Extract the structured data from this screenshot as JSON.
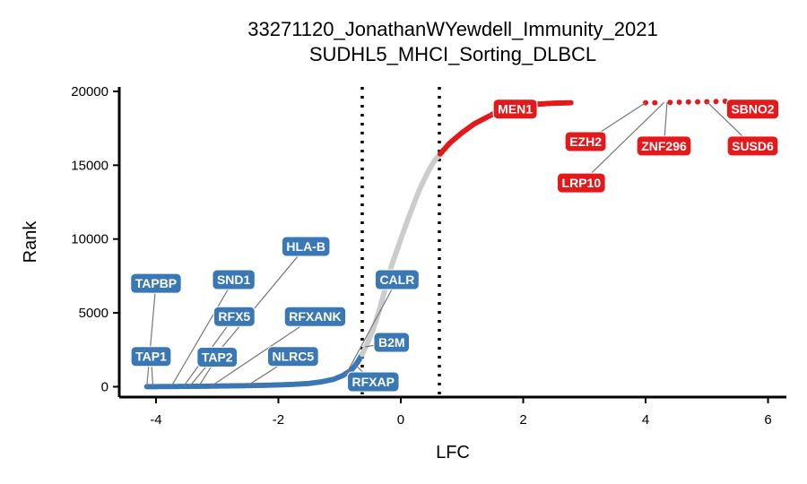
{
  "chart_data": {
    "type": "scatter",
    "title": [
      "33271120_JonathanWYewdell_Immunity_2021",
      "SUDHL5_MHCI_Sorting_DLBCL"
    ],
    "xlabel": "LFC",
    "ylabel": "Rank",
    "xlim": [
      -4.6,
      6.3
    ],
    "ylim": [
      -700,
      20300
    ],
    "xticks": [
      -4,
      -2,
      0,
      2,
      4,
      6
    ],
    "yticks": [
      0,
      5000,
      10000,
      15000,
      20000
    ],
    "thresholds": [
      -0.63,
      0.63
    ],
    "colors": {
      "negative": "#3a78b5",
      "neutral": "#cccccc",
      "positive": "#e3191c",
      "label_line": "#777777"
    },
    "curve": [
      [
        -4.15,
        5
      ],
      [
        -4.05,
        8
      ],
      [
        -3.8,
        12
      ],
      [
        -3.6,
        18
      ],
      [
        -3.4,
        25
      ],
      [
        -3.2,
        35
      ],
      [
        -3.0,
        45
      ],
      [
        -2.7,
        60
      ],
      [
        -2.4,
        80
      ],
      [
        -2.1,
        110
      ],
      [
        -1.8,
        150
      ],
      [
        -1.5,
        220
      ],
      [
        -1.3,
        330
      ],
      [
        -1.1,
        500
      ],
      [
        -0.95,
        750
      ],
      [
        -0.8,
        1150
      ],
      [
        -0.7,
        1700
      ],
      [
        -0.63,
        2200
      ],
      [
        -0.55,
        2900
      ],
      [
        -0.45,
        3900
      ],
      [
        -0.35,
        5200
      ],
      [
        -0.25,
        6700
      ],
      [
        -0.15,
        8200
      ],
      [
        0.0,
        10000
      ],
      [
        0.15,
        11700
      ],
      [
        0.3,
        13300
      ],
      [
        0.45,
        14600
      ],
      [
        0.55,
        15300
      ],
      [
        0.63,
        15700
      ],
      [
        0.8,
        16500
      ],
      [
        1.0,
        17200
      ],
      [
        1.2,
        17800
      ],
      [
        1.5,
        18450
      ],
      [
        1.8,
        18850
      ],
      [
        2.1,
        19100
      ],
      [
        2.5,
        19200
      ],
      [
        2.8,
        19230
      ]
    ],
    "outlier_points": [
      {
        "x": 4.0,
        "y": 19230,
        "group": "positive"
      },
      {
        "x": 4.15,
        "y": 19230,
        "group": "positive"
      },
      {
        "x": 4.4,
        "y": 19250,
        "group": "positive"
      },
      {
        "x": 4.55,
        "y": 19270,
        "group": "positive"
      },
      {
        "x": 4.7,
        "y": 19280,
        "group": "positive"
      },
      {
        "x": 4.85,
        "y": 19290,
        "group": "positive"
      },
      {
        "x": 5.0,
        "y": 19300,
        "group": "positive"
      },
      {
        "x": 5.15,
        "y": 19310,
        "group": "positive"
      },
      {
        "x": 5.3,
        "y": 19330,
        "group": "positive"
      },
      {
        "x": -4.05,
        "y": 5,
        "group": "negative"
      }
    ],
    "labels": [
      {
        "text": "TAPBP",
        "group": "negative",
        "x": -4.15,
        "y": 5,
        "lx": -4.0,
        "ly": 7000
      },
      {
        "text": "TAP1",
        "group": "negative",
        "x": -4.05,
        "y": 5,
        "lx": -4.08,
        "ly": 2050
      },
      {
        "text": "SND1",
        "group": "negative",
        "x": -3.75,
        "y": 15,
        "lx": -2.73,
        "ly": 7250
      },
      {
        "text": "HLA-B",
        "group": "negative",
        "x": -3.45,
        "y": 25,
        "lx": -1.55,
        "ly": 9500
      },
      {
        "text": "RFX5",
        "group": "negative",
        "x": -3.55,
        "y": 20,
        "lx": -2.72,
        "ly": 4750
      },
      {
        "text": "RFXANK",
        "group": "negative",
        "x": -3.1,
        "y": 30,
        "lx": -1.4,
        "ly": 4750
      },
      {
        "text": "TAP2",
        "group": "negative",
        "x": -3.3,
        "y": 30,
        "lx": -3.0,
        "ly": 2000
      },
      {
        "text": "NLRC5",
        "group": "negative",
        "x": -2.5,
        "y": 90,
        "lx": -1.76,
        "ly": 2050
      },
      {
        "text": "CALR",
        "group": "negative",
        "x": -0.9,
        "y": 800,
        "lx": -0.06,
        "ly": 7250
      },
      {
        "text": "B2M",
        "group": "negative",
        "x": -0.58,
        "y": 2700,
        "lx": -0.15,
        "ly": 3000
      },
      {
        "text": "RFXAP",
        "group": "negative",
        "x": -0.75,
        "y": 1500,
        "lx": -0.45,
        "ly": 330
      },
      {
        "text": "MEN1",
        "group": "positive",
        "x": 1.45,
        "y": 18400,
        "lx": 1.87,
        "ly": 18800
      },
      {
        "text": "EZH2",
        "group": "positive",
        "x": 4.0,
        "y": 19230,
        "lx": 3.02,
        "ly": 16600
      },
      {
        "text": "ZNF296",
        "group": "positive",
        "x": 4.35,
        "y": 19250,
        "lx": 4.3,
        "ly": 16300
      },
      {
        "text": "LRP10",
        "group": "positive",
        "x": 4.3,
        "y": 19240,
        "lx": 2.95,
        "ly": 13800
      },
      {
        "text": "SBNO2",
        "group": "positive",
        "x": 5.3,
        "y": 19330,
        "lx": 5.75,
        "ly": 18800
      },
      {
        "text": "SUSD6",
        "group": "positive",
        "x": 5.0,
        "y": 19300,
        "lx": 5.75,
        "ly": 16300
      }
    ]
  }
}
